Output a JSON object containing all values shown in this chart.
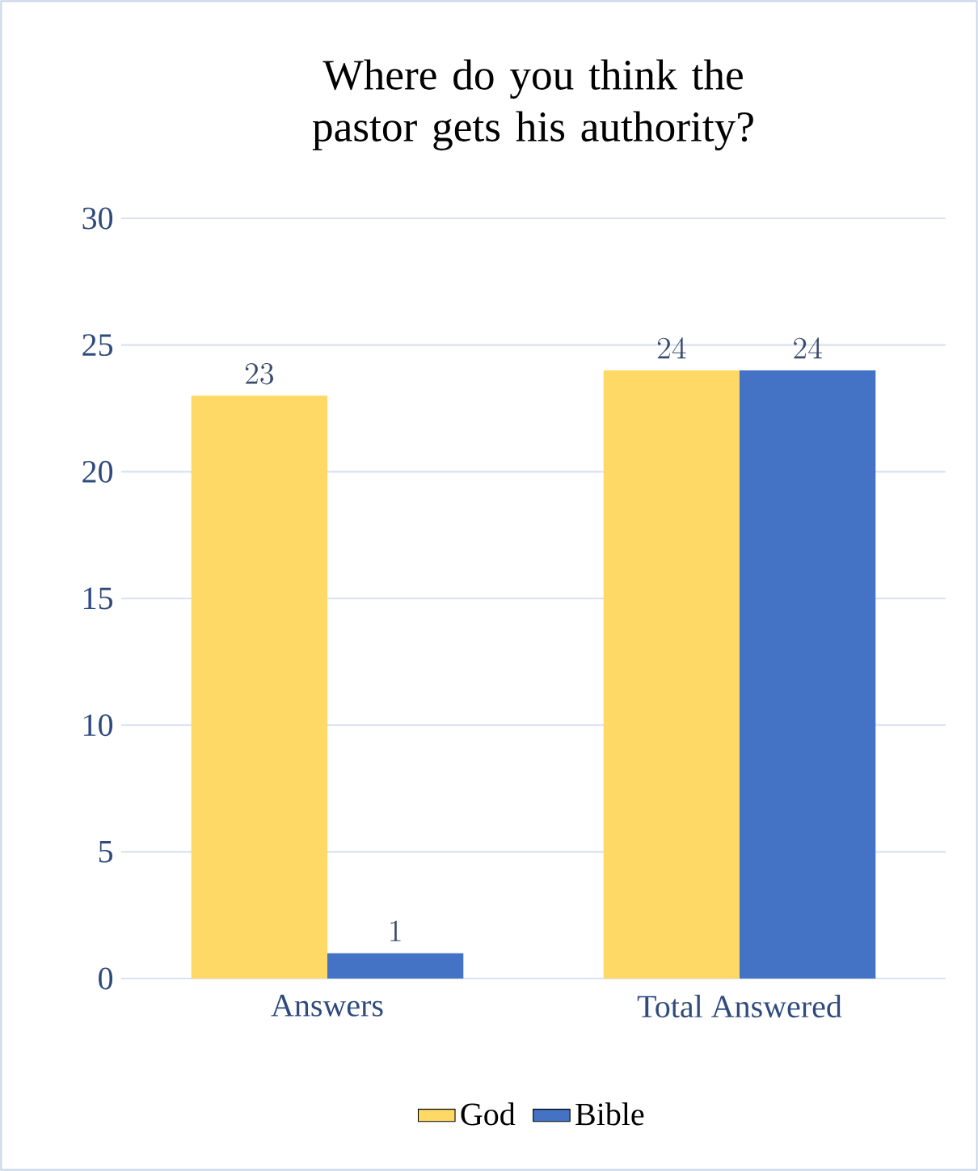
{
  "chart_data": {
    "type": "bar",
    "title": "Where do you think the pastor gets his authority?",
    "categories": [
      "Answers",
      "Total Answered"
    ],
    "series": [
      {
        "name": "God",
        "color": "#ffd966",
        "values": [
          23,
          24
        ]
      },
      {
        "name": "Bible",
        "color": "#4472c4",
        "values": [
          1,
          24
        ]
      }
    ],
    "ylim": [
      0,
      30
    ],
    "yticks": [
      0,
      5,
      10,
      15,
      20,
      25,
      30
    ],
    "grid": "y",
    "legend": "bottom",
    "data_labels": true
  }
}
